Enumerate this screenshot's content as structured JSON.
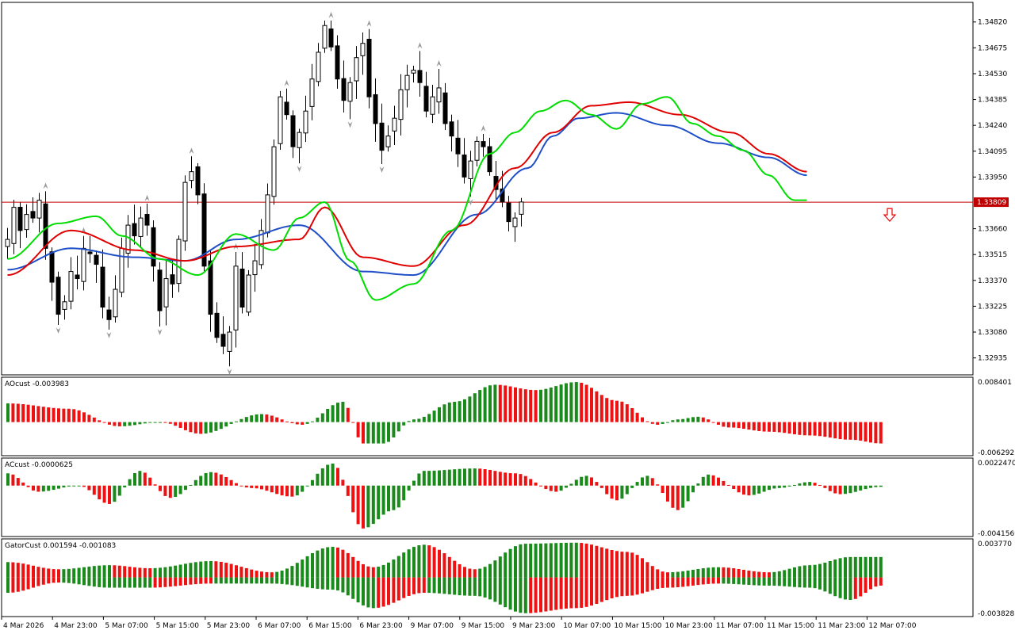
{
  "colors": {
    "background": "#ffffff",
    "grid_border": "#000000",
    "bull_body": "#ffffff",
    "bear_body": "#000000",
    "jaw": "#1f4fc8",
    "teeth": "#e00000",
    "lips": "#00dd00",
    "price_line": "#c00000",
    "hist_up": "#1a8a1a",
    "hist_down": "#ee1111",
    "fractal": "#9a9a9a",
    "sell_arrow": "#ee0000"
  },
  "chart_data": [
    {
      "type": "candlestick",
      "pane": "main",
      "ylim": [
        1.3284,
        1.3493
      ],
      "y_ticks": [
        "1.34820",
        "1.34675",
        "1.34530",
        "1.34385",
        "1.34240",
        "1.34095",
        "1.33950",
        "1.33809",
        "1.33660",
        "1.33515",
        "1.33370",
        "1.33225",
        "1.33080",
        "1.32935"
      ],
      "current_price": "1.33809",
      "x_labels": [
        "4 Mar 2026",
        "4 Mar 23:00",
        "5 Mar 07:00",
        "5 Mar 15:00",
        "5 Mar 23:00",
        "6 Mar 07:00",
        "6 Mar 15:00",
        "6 Mar 23:00",
        "9 Mar 07:00",
        "9 Mar 15:00",
        "9 Mar 23:00",
        "10 Mar 07:00",
        "10 Mar 15:00",
        "10 Mar 23:00",
        "11 Mar 07:00",
        "11 Mar 15:00",
        "11 Mar 23:00",
        "12 Mar 07:00"
      ],
      "close_path": [
        1.336,
        1.3378,
        1.3365,
        1.3374,
        1.3372,
        1.3382,
        1.3355,
        1.3336,
        1.3318,
        1.3325,
        1.3342,
        1.3338,
        1.3355,
        1.3352,
        1.3346,
        1.3322,
        1.3315,
        1.3332,
        1.3355,
        1.3368,
        1.3362,
        1.3372,
        1.3368,
        1.3345,
        1.332,
        1.3338,
        1.3335,
        1.336,
        1.3392,
        1.3398,
        1.3385,
        1.3345,
        1.3318,
        1.3305,
        1.33,
        1.3308,
        1.3345,
        1.3322,
        1.334,
        1.3348,
        1.3365,
        1.3385,
        1.3412,
        1.344,
        1.343,
        1.3412,
        1.342,
        1.3432,
        1.345,
        1.3465,
        1.348,
        1.3468,
        1.345,
        1.3438,
        1.3448,
        1.3462,
        1.347,
        1.344,
        1.3425,
        1.341,
        1.3418,
        1.3428,
        1.3444,
        1.3452,
        1.3455,
        1.3448,
        1.3432,
        1.344,
        1.3445,
        1.3425,
        1.3418,
        1.3408,
        1.3395,
        1.3404,
        1.3415,
        1.3412,
        1.3398,
        1.3388,
        1.3381,
        1.337,
        1.3372,
        1.3381
      ],
      "series": [
        {
          "name": "",
          "role": "jaw",
          "points": [
            [
              0,
              1.3343
            ],
            [
              10,
              1.3355
            ],
            [
              20,
              1.335
            ],
            [
              28,
              1.3348
            ],
            [
              36,
              1.336
            ],
            [
              46,
              1.3368
            ],
            [
              56,
              1.3342
            ],
            [
              64,
              1.334
            ],
            [
              74,
              1.3374
            ],
            [
              82,
              1.34
            ],
            [
              86,
              1.3418
            ],
            [
              90,
              1.3428
            ],
            [
              96,
              1.3431
            ],
            [
              104,
              1.3424
            ],
            [
              112,
              1.3414
            ],
            [
              120,
              1.3406
            ],
            [
              126,
              1.3396
            ]
          ]
        },
        {
          "name": "",
          "role": "teeth",
          "points": [
            [
              0,
              1.334
            ],
            [
              10,
              1.3365
            ],
            [
              20,
              1.3354
            ],
            [
              28,
              1.3348
            ],
            [
              36,
              1.3356
            ],
            [
              46,
              1.336
            ],
            [
              50,
              1.3378
            ],
            [
              56,
              1.335
            ],
            [
              64,
              1.3345
            ],
            [
              72,
              1.3368
            ],
            [
              80,
              1.34
            ],
            [
              86,
              1.342
            ],
            [
              92,
              1.3435
            ],
            [
              98,
              1.3437
            ],
            [
              106,
              1.343
            ],
            [
              114,
              1.342
            ],
            [
              120,
              1.3408
            ],
            [
              126,
              1.3398
            ]
          ]
        },
        {
          "name": "",
          "role": "lips",
          "points": [
            [
              0,
              1.3349
            ],
            [
              8,
              1.3369
            ],
            [
              14,
              1.3373
            ],
            [
              18,
              1.3362
            ],
            [
              24,
              1.3349
            ],
            [
              30,
              1.334
            ],
            [
              36,
              1.3363
            ],
            [
              42,
              1.3354
            ],
            [
              46,
              1.3372
            ],
            [
              50,
              1.3381
            ],
            [
              54,
              1.3348
            ],
            [
              58,
              1.3326
            ],
            [
              64,
              1.3335
            ],
            [
              70,
              1.3365
            ],
            [
              76,
              1.3408
            ],
            [
              80,
              1.342
            ],
            [
              84,
              1.3432
            ],
            [
              88,
              1.3438
            ],
            [
              92,
              1.343
            ],
            [
              96,
              1.3422
            ],
            [
              100,
              1.3436
            ],
            [
              104,
              1.344
            ],
            [
              108,
              1.3425
            ],
            [
              112,
              1.3418
            ],
            [
              116,
              1.341
            ],
            [
              120,
              1.3396
            ],
            [
              124,
              1.3382
            ],
            [
              126,
              1.3382
            ]
          ]
        }
      ]
    },
    {
      "type": "bar",
      "pane": "AO",
      "label": "AOcust -0.003983",
      "ylim": [
        -0.006292,
        0.008401
      ],
      "y_ticks": [
        "0.008401",
        "-0.006292"
      ],
      "keypoints": [
        [
          0,
          0.0035
        ],
        [
          12,
          0.0025
        ],
        [
          22,
          -0.0008
        ],
        [
          30,
          0.0
        ],
        [
          38,
          -0.0022
        ],
        [
          50,
          0.0015
        ],
        [
          58,
          -0.0005
        ],
        [
          66,
          0.0038
        ],
        [
          70,
          -0.004
        ],
        [
          74,
          -0.004
        ],
        [
          80,
          0.0005
        ],
        [
          88,
          0.0038
        ],
        [
          96,
          0.007
        ],
        [
          104,
          0.006
        ],
        [
          112,
          0.0075
        ],
        [
          120,
          0.004
        ],
        [
          128,
          -0.0005
        ],
        [
          132,
          0.0005
        ],
        [
          136,
          0.001
        ],
        [
          142,
          -0.001
        ],
        [
          150,
          -0.0018
        ],
        [
          158,
          -0.0025
        ],
        [
          166,
          -0.0033
        ],
        [
          172,
          -0.004
        ]
      ]
    },
    {
      "type": "bar",
      "pane": "AC",
      "label": "ACcust -0.0000625",
      "ylim": [
        -0.0041569,
        0.002247
      ],
      "y_ticks": [
        "0.0022470",
        "-0.0041569"
      ],
      "keypoints": [
        [
          0,
          0.001
        ],
        [
          6,
          -0.0005
        ],
        [
          14,
          0.0
        ],
        [
          20,
          -0.0015
        ],
        [
          26,
          0.0012
        ],
        [
          32,
          -0.001
        ],
        [
          40,
          0.0011
        ],
        [
          48,
          -0.0002
        ],
        [
          56,
          -0.0009
        ],
        [
          64,
          0.0018
        ],
        [
          70,
          -0.0035
        ],
        [
          76,
          -0.002
        ],
        [
          82,
          0.0012
        ],
        [
          92,
          0.0014
        ],
        [
          100,
          0.001
        ],
        [
          108,
          -0.0005
        ],
        [
          114,
          0.0008
        ],
        [
          120,
          -0.0012
        ],
        [
          126,
          0.0008
        ],
        [
          132,
          -0.002
        ],
        [
          138,
          0.0009
        ],
        [
          146,
          -0.0008
        ],
        [
          152,
          -0.0002
        ],
        [
          158,
          0.0003
        ],
        [
          164,
          -0.0007
        ],
        [
          172,
          -0.0001
        ]
      ]
    },
    {
      "type": "bar",
      "pane": "Gator",
      "label": "GatorCust 0.001594 -0.001083",
      "ylim": [
        -0.003828,
        0.00377
      ],
      "y_ticks": [
        "0.003770",
        "-0.003828"
      ],
      "upper": [
        [
          0,
          0.0015
        ],
        [
          10,
          0.0008
        ],
        [
          20,
          0.0012
        ],
        [
          28,
          0.0009
        ],
        [
          40,
          0.0016
        ],
        [
          52,
          0.0005
        ],
        [
          64,
          0.003
        ],
        [
          72,
          0.001
        ],
        [
          82,
          0.0032
        ],
        [
          92,
          0.0008
        ],
        [
          102,
          0.0033
        ],
        [
          112,
          0.0034
        ],
        [
          122,
          0.0025
        ],
        [
          130,
          0.0005
        ],
        [
          140,
          0.001
        ],
        [
          150,
          0.0005
        ],
        [
          158,
          0.0012
        ],
        [
          166,
          0.002
        ],
        [
          172,
          0.002
        ]
      ],
      "lower": [
        [
          0,
          -0.0015
        ],
        [
          10,
          -0.0005
        ],
        [
          20,
          -0.001
        ],
        [
          28,
          -0.001
        ],
        [
          40,
          -0.0006
        ],
        [
          52,
          -0.0006
        ],
        [
          64,
          -0.0012
        ],
        [
          72,
          -0.003
        ],
        [
          82,
          -0.0015
        ],
        [
          92,
          -0.0018
        ],
        [
          102,
          -0.0035
        ],
        [
          112,
          -0.003
        ],
        [
          122,
          -0.0018
        ],
        [
          130,
          -0.001
        ],
        [
          140,
          -0.0006
        ],
        [
          150,
          -0.0008
        ],
        [
          158,
          -0.001
        ],
        [
          166,
          -0.0022
        ],
        [
          172,
          -0.0008
        ]
      ]
    }
  ]
}
